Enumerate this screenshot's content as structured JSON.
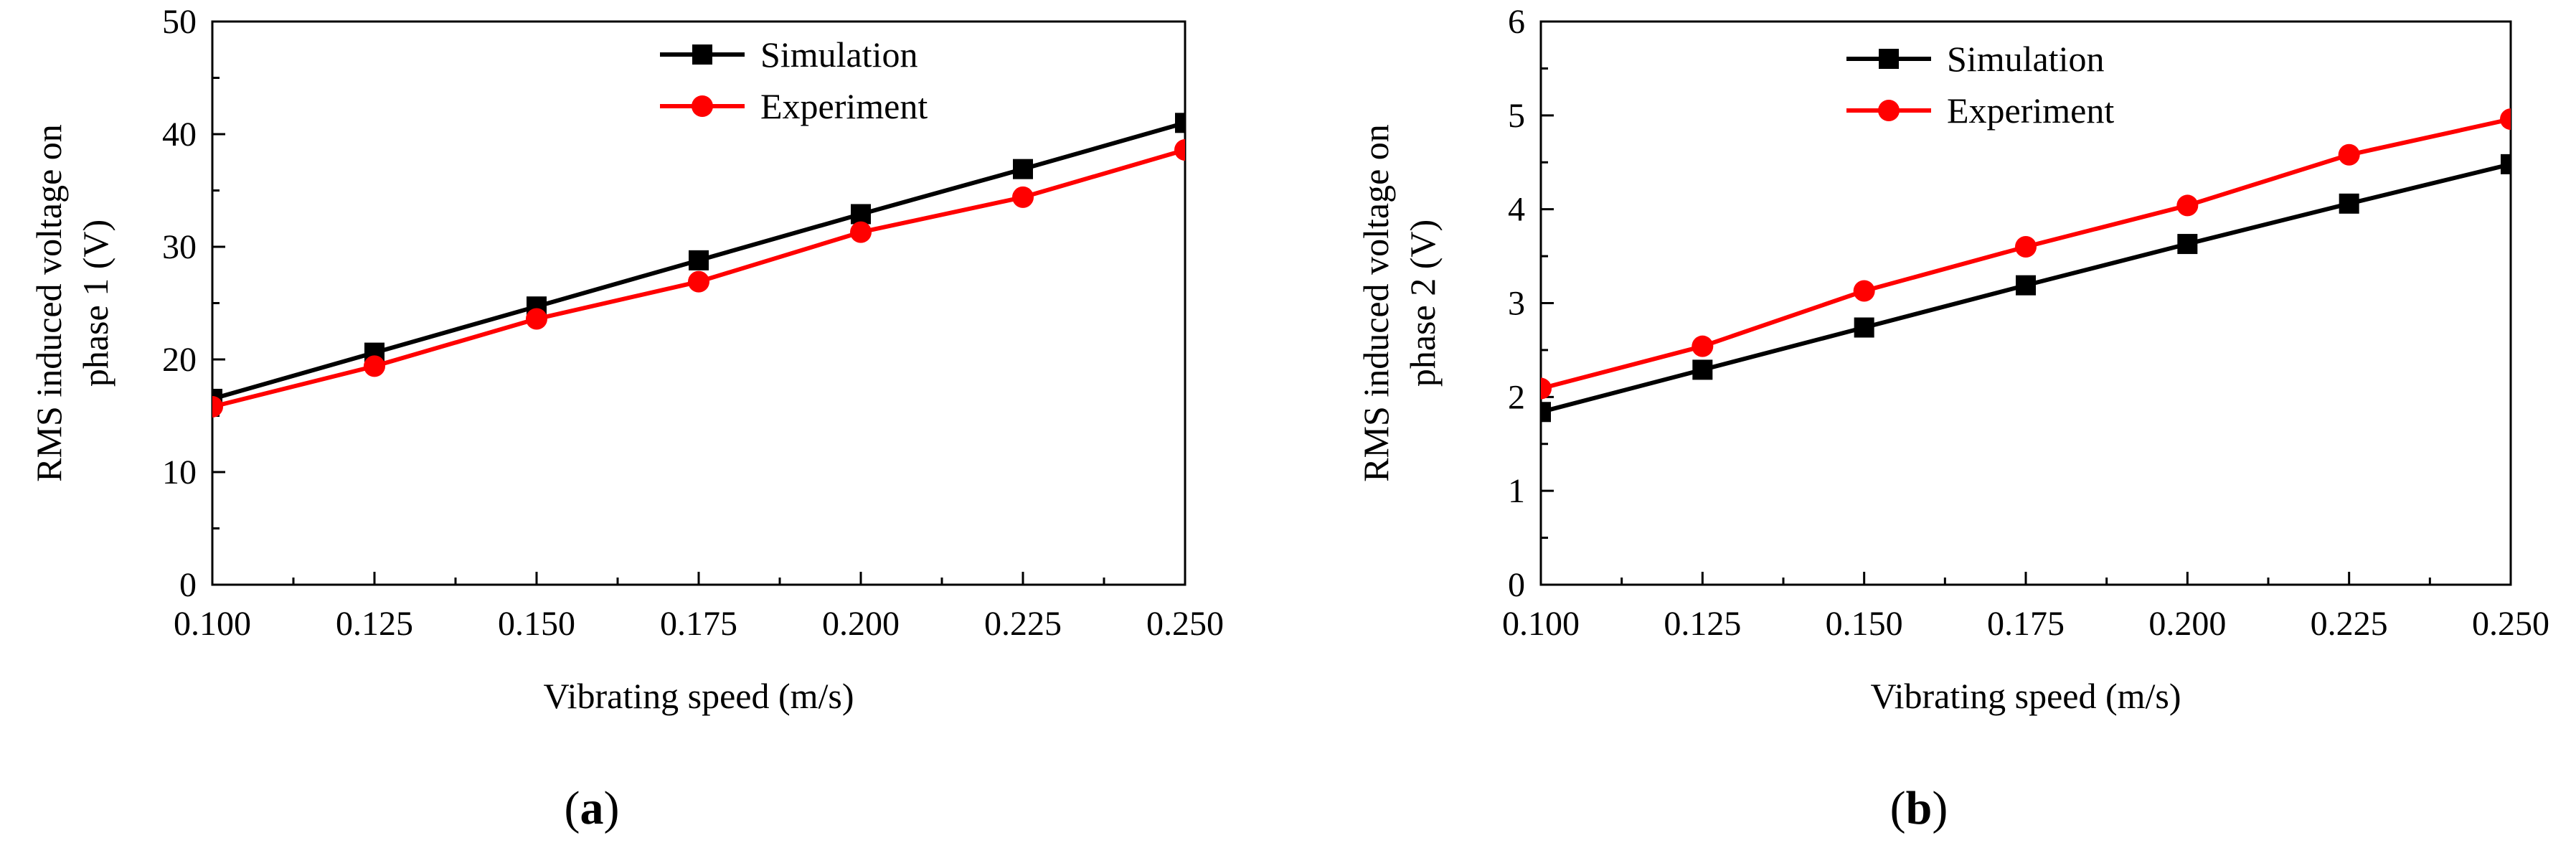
{
  "chart_data": [
    {
      "type": "line",
      "panel_label": "a",
      "xlabel": "Vibrating speed (m/s)",
      "ylabel": [
        "RMS induced voltage on",
        "phase 1 (V)"
      ],
      "x": [
        0.1,
        0.125,
        0.15,
        0.175,
        0.2,
        0.225,
        0.25
      ],
      "x_tick_labels": [
        "0.100",
        "0.125",
        "0.150",
        "0.175",
        "0.200",
        "0.225",
        "0.250"
      ],
      "xlim": [
        0.1,
        0.25
      ],
      "ylim": [
        0,
        50
      ],
      "y_ticks": [
        0,
        10,
        20,
        30,
        40,
        50
      ],
      "y_tick_labels": [
        "0",
        "10",
        "20",
        "30",
        "40",
        "50"
      ],
      "grid": false,
      "legend_position": "top-center",
      "series": [
        {
          "name": "Simulation",
          "color": "#000000",
          "marker": "square",
          "values": [
            16.5,
            20.6,
            24.7,
            28.8,
            32.9,
            36.9,
            41.0
          ]
        },
        {
          "name": "Experiment",
          "color": "#ff0000",
          "marker": "circle",
          "values": [
            15.8,
            19.4,
            23.6,
            26.9,
            31.3,
            34.4,
            38.6
          ]
        }
      ]
    },
    {
      "type": "line",
      "panel_label": "b",
      "xlabel": "Vibrating speed (m/s)",
      "ylabel": [
        "RMS induced voltage on",
        "phase 2 (V)"
      ],
      "x": [
        0.1,
        0.125,
        0.15,
        0.175,
        0.2,
        0.225,
        0.25
      ],
      "x_tick_labels": [
        "0.100",
        "0.125",
        "0.150",
        "0.175",
        "0.200",
        "0.225",
        "0.250"
      ],
      "xlim": [
        0.1,
        0.25
      ],
      "ylim": [
        0,
        6
      ],
      "y_ticks": [
        0,
        1,
        2,
        3,
        4,
        5,
        6
      ],
      "y_tick_labels": [
        "0",
        "1",
        "2",
        "3",
        "4",
        "5",
        "6"
      ],
      "grid": false,
      "legend_position": "top-center",
      "series": [
        {
          "name": "Simulation",
          "color": "#000000",
          "marker": "square",
          "values": [
            1.84,
            2.29,
            2.74,
            3.19,
            3.63,
            4.06,
            4.48
          ]
        },
        {
          "name": "Experiment",
          "color": "#ff0000",
          "marker": "circle",
          "values": [
            2.09,
            2.54,
            3.13,
            3.6,
            4.04,
            4.58,
            4.96
          ]
        }
      ]
    }
  ]
}
